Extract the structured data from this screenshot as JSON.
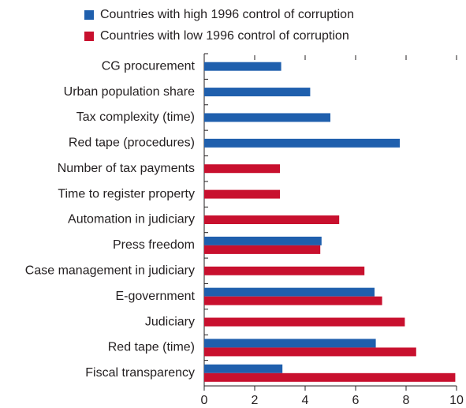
{
  "chart_data": {
    "type": "barh",
    "categories": [
      "CG procurement",
      "Urban population share",
      "Tax complexity (time)",
      "Red tape (procedures)",
      "Number of tax payments",
      "Time to register property",
      "Automation in judiciary",
      "Press freedom",
      "Case management in judiciary",
      "E-government",
      "Judiciary",
      "Red tape (time)",
      "Fiscal transparency"
    ],
    "series": [
      {
        "name": "Countries with high 1996 control of corruption",
        "color": "#1f5fad",
        "values": [
          3.05,
          4.2,
          5.0,
          7.75,
          null,
          null,
          null,
          4.65,
          null,
          6.75,
          null,
          6.8,
          3.1
        ]
      },
      {
        "name": "Countries with low 1996 control of corruption",
        "color": "#c8102e",
        "values": [
          null,
          null,
          null,
          null,
          3.0,
          3.0,
          5.35,
          4.6,
          6.35,
          7.05,
          7.95,
          8.4,
          9.95
        ]
      }
    ],
    "xlim": [
      0,
      10
    ],
    "xticks": [
      0,
      2,
      4,
      6,
      8,
      10
    ],
    "legend": "top"
  }
}
